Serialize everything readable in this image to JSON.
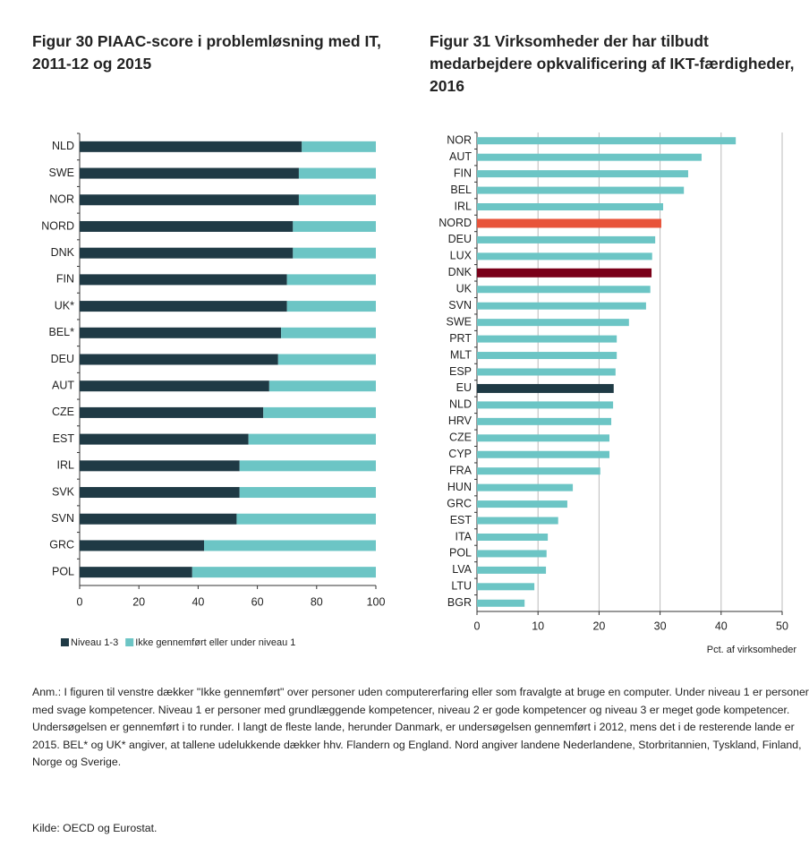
{
  "chart_data": [
    {
      "type": "stacked-hbar",
      "title": "Figur 30 PIAAC-score i problemløsning med IT, 2011-12 og 2015",
      "categories": [
        "NLD",
        "SWE",
        "NOR",
        "NORD",
        "DNK",
        "FIN",
        "UK*",
        "BEL*",
        "DEU",
        "AUT",
        "CZE",
        "EST",
        "IRL",
        "SVK",
        "SVN",
        "GRC",
        "POL"
      ],
      "series": [
        {
          "name": "Niveau 1-3",
          "color": "#1f3a45",
          "values": [
            75,
            74,
            74,
            72,
            72,
            70,
            70,
            68,
            67,
            64,
            62,
            57,
            54,
            54,
            53,
            42,
            38
          ]
        },
        {
          "name": "Ikke gennemført eller under niveau 1",
          "color": "#6cc5c5",
          "values": [
            25,
            26,
            26,
            28,
            28,
            30,
            30,
            32,
            33,
            36,
            38,
            43,
            46,
            46,
            47,
            58,
            62
          ]
        }
      ],
      "xlim": [
        0,
        100
      ],
      "xticks": [
        0,
        20,
        40,
        60,
        80,
        100
      ],
      "grid": false,
      "legend": "bottom"
    },
    {
      "type": "hbar",
      "title": "Figur 31 Virksomheder der har tilbudt medarbejdere opkvalificering af IKT-færdigheder, 2016",
      "categories": [
        "NOR",
        "AUT",
        "FIN",
        "BEL",
        "IRL",
        "NORD",
        "DEU",
        "LUX",
        "DNK",
        "UK",
        "SVN",
        "SWE",
        "PRT",
        "MLT",
        "ESP",
        "EU",
        "NLD",
        "HRV",
        "CZE",
        "CYP",
        "FRA",
        "HUN",
        "GRC",
        "EST",
        "ITA",
        "POL",
        "LVA",
        "LTU",
        "BGR"
      ],
      "values": [
        42.4,
        36.8,
        34.6,
        33.9,
        30.5,
        30.2,
        29.2,
        28.7,
        28.6,
        28.4,
        27.7,
        24.9,
        22.9,
        22.9,
        22.7,
        22.4,
        22.3,
        22,
        21.7,
        21.7,
        20.2,
        15.7,
        14.8,
        13.3,
        11.6,
        11.4,
        11.3,
        9.4,
        7.8
      ],
      "colors": [
        "#6cc5c5",
        "#6cc5c5",
        "#6cc5c5",
        "#6cc5c5",
        "#6cc5c5",
        "#e8533a",
        "#6cc5c5",
        "#6cc5c5",
        "#7a0019",
        "#6cc5c5",
        "#6cc5c5",
        "#6cc5c5",
        "#6cc5c5",
        "#6cc5c5",
        "#6cc5c5",
        "#1f3a45",
        "#6cc5c5",
        "#6cc5c5",
        "#6cc5c5",
        "#6cc5c5",
        "#6cc5c5",
        "#6cc5c5",
        "#6cc5c5",
        "#6cc5c5",
        "#6cc5c5",
        "#6cc5c5",
        "#6cc5c5",
        "#6cc5c5",
        "#6cc5c5"
      ],
      "xlim": [
        0,
        50
      ],
      "xticks": [
        0,
        10,
        20,
        30,
        40,
        50
      ],
      "grid": true,
      "xlabel": "Pct. af virksomheder"
    }
  ],
  "note": "Anm.: I figuren til venstre dækker \"Ikke gennemført\" over personer uden computererfaring eller som fravalgte at bruge en computer. Under niveau 1 er personer med svage kompetencer. Niveau 1 er personer med grundlæggende kompetencer, niveau 2 er gode kompetencer og niveau 3 er meget gode kompetencer. Undersøgelsen er gennemført i to runder. I langt de fleste lande, herunder Danmark, er undersøgelsen gennemført i 2012, mens det i de resterende lande er 2015. BEL* og UK* angiver, at tallene udelukkende dækker hhv. Flandern og England. Nord angiver landene Nederlandene, Storbritannien, Tyskland, Finland, Norge og Sverige.",
  "source": "Kilde: OECD og Eurostat."
}
